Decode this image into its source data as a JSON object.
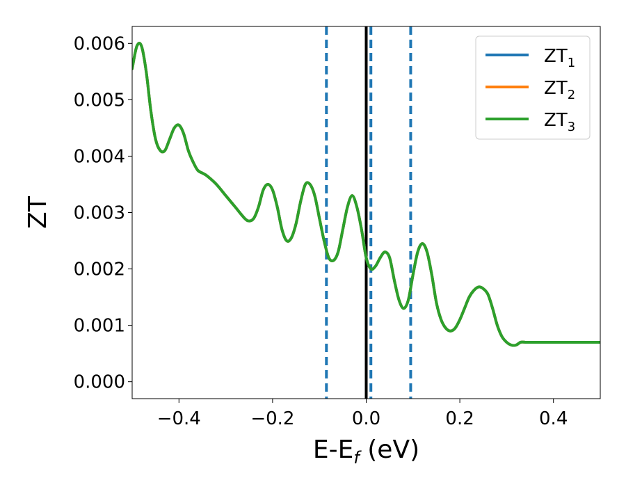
{
  "chart_data": {
    "type": "line",
    "xlabel": "E-E",
    "xlabel_sub": "f",
    "xlabel_unit": " (eV)",
    "ylabel": "ZT",
    "xlim": [
      -0.5,
      0.5
    ],
    "ylim": [
      -0.0003,
      0.0063
    ],
    "xticks": [
      -0.4,
      -0.2,
      0.0,
      0.2,
      0.4
    ],
    "xtick_labels": [
      "−0.4",
      "−0.2",
      "0.0",
      "0.2",
      "0.4"
    ],
    "yticks": [
      0.0,
      0.001,
      0.002,
      0.003,
      0.004,
      0.005,
      0.006
    ],
    "ytick_labels": [
      "0.000",
      "0.001",
      "0.002",
      "0.003",
      "0.004",
      "0.005",
      "0.006"
    ],
    "legend_placement": "top-right",
    "vlines": [
      {
        "x": -0.085,
        "style": "dashed",
        "color": "#1f77b4"
      },
      {
        "x": 0.01,
        "style": "dashed",
        "color": "#1f77b4"
      },
      {
        "x": 0.095,
        "style": "dashed",
        "color": "#1f77b4"
      },
      {
        "x": 0.0,
        "style": "solid",
        "color": "#000000"
      }
    ],
    "series": [
      {
        "name": "ZT",
        "sub": "1",
        "color": "#1f77b4",
        "x": [
          -0.5,
          -0.49,
          -0.48,
          -0.47,
          -0.46,
          -0.45,
          -0.44,
          -0.43,
          -0.42,
          -0.41,
          -0.4,
          -0.39,
          -0.38,
          -0.37,
          -0.36,
          -0.35,
          -0.34,
          -0.32,
          -0.3,
          -0.28,
          -0.26,
          -0.25,
          -0.24,
          -0.23,
          -0.22,
          -0.21,
          -0.2,
          -0.19,
          -0.18,
          -0.17,
          -0.16,
          -0.15,
          -0.14,
          -0.13,
          -0.12,
          -0.11,
          -0.1,
          -0.09,
          -0.08,
          -0.07,
          -0.06,
          -0.05,
          -0.04,
          -0.03,
          -0.02,
          -0.01,
          0.0,
          0.01,
          0.02,
          0.03,
          0.04,
          0.05,
          0.06,
          0.07,
          0.08,
          0.09,
          0.1,
          0.11,
          0.12,
          0.13,
          0.14,
          0.15,
          0.16,
          0.17,
          0.18,
          0.19,
          0.2,
          0.21,
          0.22,
          0.23,
          0.24,
          0.25,
          0.26,
          0.27,
          0.28,
          0.29,
          0.3,
          0.31,
          0.32,
          0.33,
          0.34,
          0.35,
          0.36,
          0.37,
          0.38,
          0.39,
          0.4,
          0.41,
          0.42,
          0.43,
          0.44,
          0.45,
          0.46,
          0.47,
          0.48,
          0.49,
          0.5
        ],
        "y": [
          0.00555,
          0.00595,
          0.00595,
          0.0055,
          0.0048,
          0.0043,
          0.0041,
          0.0041,
          0.0043,
          0.0045,
          0.00455,
          0.0044,
          0.0041,
          0.0039,
          0.00375,
          0.0037,
          0.00365,
          0.0035,
          0.0033,
          0.0031,
          0.0029,
          0.00285,
          0.0029,
          0.0031,
          0.0034,
          0.0035,
          0.0034,
          0.0031,
          0.0027,
          0.0025,
          0.00255,
          0.0028,
          0.0032,
          0.0035,
          0.0035,
          0.0033,
          0.0029,
          0.0025,
          0.0022,
          0.00215,
          0.0023,
          0.0027,
          0.0031,
          0.0033,
          0.0031,
          0.0027,
          0.0022,
          0.002,
          0.00205,
          0.0022,
          0.0023,
          0.0022,
          0.0018,
          0.00145,
          0.0013,
          0.00145,
          0.0019,
          0.0023,
          0.00245,
          0.0023,
          0.0019,
          0.0014,
          0.0011,
          0.00095,
          0.0009,
          0.00095,
          0.0011,
          0.0013,
          0.0015,
          0.00162,
          0.00168,
          0.00165,
          0.00155,
          0.0013,
          0.001,
          0.0008,
          0.0007,
          0.00065,
          0.00065,
          0.0007,
          0.0007,
          0.0007,
          0.0007,
          0.0007,
          0.0007,
          0.0007,
          0.0007,
          0.0007,
          0.0007,
          0.0007,
          0.0007,
          0.0007,
          0.0007,
          0.0007,
          0.0007,
          0.0007,
          0.0007
        ]
      },
      {
        "name": "ZT",
        "sub": "2",
        "color": "#ff7f0e",
        "x": [
          -0.5,
          -0.49,
          -0.48,
          -0.47,
          -0.46,
          -0.45,
          -0.44,
          -0.43,
          -0.42,
          -0.41,
          -0.4,
          -0.39,
          -0.38,
          -0.37,
          -0.36,
          -0.35,
          -0.34,
          -0.32,
          -0.3,
          -0.28,
          -0.26,
          -0.25,
          -0.24,
          -0.23,
          -0.22,
          -0.21,
          -0.2,
          -0.19,
          -0.18,
          -0.17,
          -0.16,
          -0.15,
          -0.14,
          -0.13,
          -0.12,
          -0.11,
          -0.1,
          -0.09,
          -0.08,
          -0.07,
          -0.06,
          -0.05,
          -0.04,
          -0.03,
          -0.02,
          -0.01,
          0.0,
          0.01,
          0.02,
          0.03,
          0.04,
          0.05,
          0.06,
          0.07,
          0.08,
          0.09,
          0.1,
          0.11,
          0.12,
          0.13,
          0.14,
          0.15,
          0.16,
          0.17,
          0.18,
          0.19,
          0.2,
          0.21,
          0.22,
          0.23,
          0.24,
          0.25,
          0.26,
          0.27,
          0.28,
          0.29,
          0.3,
          0.31,
          0.32,
          0.33,
          0.34,
          0.35,
          0.36,
          0.37,
          0.38,
          0.39,
          0.4,
          0.41,
          0.42,
          0.43,
          0.44,
          0.45,
          0.46,
          0.47,
          0.48,
          0.49,
          0.5
        ],
        "y": [
          0.00555,
          0.00595,
          0.00595,
          0.0055,
          0.0048,
          0.0043,
          0.0041,
          0.0041,
          0.0043,
          0.0045,
          0.00455,
          0.0044,
          0.0041,
          0.0039,
          0.00375,
          0.0037,
          0.00365,
          0.0035,
          0.0033,
          0.0031,
          0.0029,
          0.00285,
          0.0029,
          0.0031,
          0.0034,
          0.0035,
          0.0034,
          0.0031,
          0.0027,
          0.0025,
          0.00255,
          0.0028,
          0.0032,
          0.0035,
          0.0035,
          0.0033,
          0.0029,
          0.0025,
          0.0022,
          0.00215,
          0.0023,
          0.0027,
          0.0031,
          0.0033,
          0.0031,
          0.0027,
          0.0022,
          0.002,
          0.00205,
          0.0022,
          0.0023,
          0.0022,
          0.0018,
          0.00145,
          0.0013,
          0.00145,
          0.0019,
          0.0023,
          0.00245,
          0.0023,
          0.0019,
          0.0014,
          0.0011,
          0.00095,
          0.0009,
          0.00095,
          0.0011,
          0.0013,
          0.0015,
          0.00162,
          0.00168,
          0.00165,
          0.00155,
          0.0013,
          0.001,
          0.0008,
          0.0007,
          0.00065,
          0.00065,
          0.0007,
          0.0007,
          0.0007,
          0.0007,
          0.0007,
          0.0007,
          0.0007,
          0.0007,
          0.0007,
          0.0007,
          0.0007,
          0.0007,
          0.0007,
          0.0007,
          0.0007,
          0.0007,
          0.0007,
          0.0007
        ]
      },
      {
        "name": "ZT",
        "sub": "3",
        "color": "#2ca02c",
        "x": [
          -0.5,
          -0.49,
          -0.48,
          -0.47,
          -0.46,
          -0.45,
          -0.44,
          -0.43,
          -0.42,
          -0.41,
          -0.4,
          -0.39,
          -0.38,
          -0.37,
          -0.36,
          -0.35,
          -0.34,
          -0.32,
          -0.3,
          -0.28,
          -0.26,
          -0.25,
          -0.24,
          -0.23,
          -0.22,
          -0.21,
          -0.2,
          -0.19,
          -0.18,
          -0.17,
          -0.16,
          -0.15,
          -0.14,
          -0.13,
          -0.12,
          -0.11,
          -0.1,
          -0.09,
          -0.08,
          -0.07,
          -0.06,
          -0.05,
          -0.04,
          -0.03,
          -0.02,
          -0.01,
          0.0,
          0.01,
          0.02,
          0.03,
          0.04,
          0.05,
          0.06,
          0.07,
          0.08,
          0.09,
          0.1,
          0.11,
          0.12,
          0.13,
          0.14,
          0.15,
          0.16,
          0.17,
          0.18,
          0.19,
          0.2,
          0.21,
          0.22,
          0.23,
          0.24,
          0.25,
          0.26,
          0.27,
          0.28,
          0.29,
          0.3,
          0.31,
          0.32,
          0.33,
          0.34,
          0.35,
          0.36,
          0.37,
          0.38,
          0.39,
          0.4,
          0.41,
          0.42,
          0.43,
          0.44,
          0.45,
          0.46,
          0.47,
          0.48,
          0.49,
          0.5
        ],
        "y": [
          0.00555,
          0.00595,
          0.00595,
          0.0055,
          0.0048,
          0.0043,
          0.0041,
          0.0041,
          0.0043,
          0.0045,
          0.00455,
          0.0044,
          0.0041,
          0.0039,
          0.00375,
          0.0037,
          0.00365,
          0.0035,
          0.0033,
          0.0031,
          0.0029,
          0.00285,
          0.0029,
          0.0031,
          0.0034,
          0.0035,
          0.0034,
          0.0031,
          0.0027,
          0.0025,
          0.00255,
          0.0028,
          0.0032,
          0.0035,
          0.0035,
          0.0033,
          0.0029,
          0.0025,
          0.0022,
          0.00215,
          0.0023,
          0.0027,
          0.0031,
          0.0033,
          0.0031,
          0.0027,
          0.0022,
          0.002,
          0.00205,
          0.0022,
          0.0023,
          0.0022,
          0.0018,
          0.00145,
          0.0013,
          0.00145,
          0.0019,
          0.0023,
          0.00245,
          0.0023,
          0.0019,
          0.0014,
          0.0011,
          0.00095,
          0.0009,
          0.00095,
          0.0011,
          0.0013,
          0.0015,
          0.00162,
          0.00168,
          0.00165,
          0.00155,
          0.0013,
          0.001,
          0.0008,
          0.0007,
          0.00065,
          0.00065,
          0.0007,
          0.0007,
          0.0007,
          0.0007,
          0.0007,
          0.0007,
          0.0007,
          0.0007,
          0.0007,
          0.0007,
          0.0007,
          0.0007,
          0.0007,
          0.0007,
          0.0007,
          0.0007,
          0.0007,
          0.0007
        ]
      }
    ]
  }
}
